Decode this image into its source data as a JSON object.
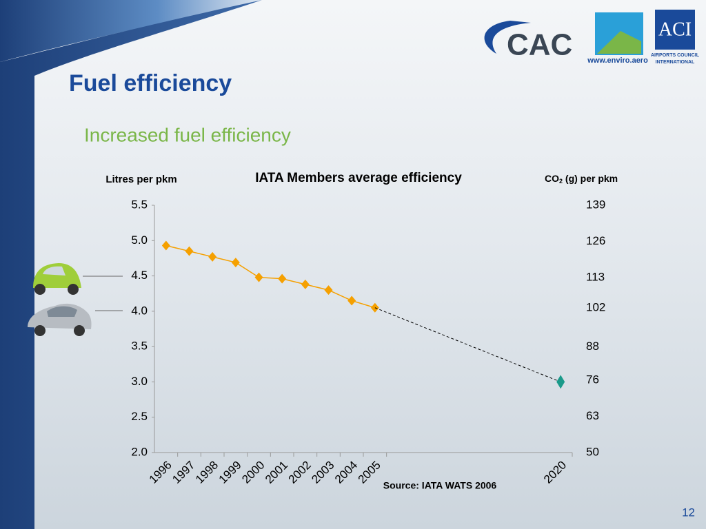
{
  "header": {
    "title": "Fuel efficiency",
    "subtitle": "Increased fuel efficiency"
  },
  "logos": {
    "cac": "CAC",
    "enviro": "www.enviro.aero",
    "aci": "ACI",
    "aci_name": [
      "AIRPORTS COUNCIL",
      "INTERNATIONAL"
    ]
  },
  "chart_data": {
    "type": "line",
    "title": "IATA Members average efficiency",
    "y_label": "Litres per pkm",
    "y2_label": {
      "main": "CO",
      "sub": "2",
      "rest": " (g) per pkm"
    },
    "source": "Source: IATA WATS 2006",
    "categories": [
      "1996",
      "1997",
      "1998",
      "1999",
      "2000",
      "2001",
      "2002",
      "2003",
      "2004",
      "2005",
      null,
      null,
      null,
      null,
      null,
      null,
      null,
      "2020"
    ],
    "series": [
      {
        "color": "#f5a000",
        "marker": "diamond",
        "dash": false,
        "values": [
          4.93,
          4.85,
          4.77,
          4.69,
          4.48,
          4.46,
          4.38,
          4.3,
          4.15,
          4.05,
          null,
          null,
          null,
          null,
          null,
          null,
          null,
          null
        ]
      },
      {
        "color": "#000000",
        "marker": "none",
        "dash": true,
        "values": [
          null,
          null,
          null,
          null,
          null,
          null,
          null,
          null,
          null,
          4.05,
          null,
          null,
          null,
          null,
          null,
          null,
          null,
          3.0
        ]
      },
      {
        "color": "#1a9a8a",
        "marker": "diamond",
        "dash": false,
        "values": [
          null,
          null,
          null,
          null,
          null,
          null,
          null,
          null,
          null,
          null,
          null,
          null,
          null,
          null,
          null,
          null,
          null,
          3.0
        ]
      }
    ],
    "ylim": [
      2,
      5.5
    ],
    "yticks": [
      {
        "value": 2,
        "label": "2.0"
      },
      2.5,
      {
        "value": 3,
        "label": "3.0"
      },
      3.5,
      {
        "value": 4,
        "label": "4.0"
      },
      4.5,
      {
        "value": 5,
        "label": "5.0"
      },
      5.5
    ],
    "y2lim": [
      50,
      139
    ],
    "y2ticks": [
      50,
      63,
      76,
      88,
      102,
      113,
      126,
      139
    ],
    "grid": false
  },
  "footer": {
    "page": "12"
  }
}
